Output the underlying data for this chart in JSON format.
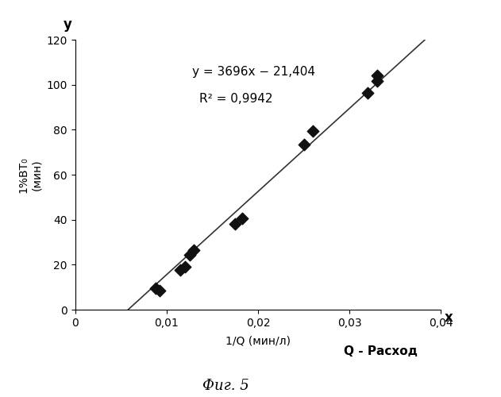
{
  "xlabel": "1/Q (мин/л)",
  "ylabel": "1%ВТ₀\n(мин)",
  "equation": "y = 3696x − 21,404",
  "r_squared": "R² = 0,9942",
  "xlim": [
    0,
    0.04
  ],
  "ylim": [
    0,
    120
  ],
  "xticks": [
    0,
    0.01,
    0.02,
    0.03,
    0.04
  ],
  "yticks": [
    0,
    20,
    40,
    60,
    80,
    100,
    120
  ],
  "slope": 3696,
  "intercept": -21.404,
  "data_x": [
    0.0088,
    0.0092,
    0.0115,
    0.012,
    0.0125,
    0.013,
    0.0175,
    0.0183,
    0.025,
    0.026,
    0.032,
    0.033,
    0.033
  ],
  "data_y": [
    9.5,
    8.5,
    17.5,
    19.0,
    24.5,
    26.5,
    38.0,
    40.5,
    73.5,
    79.5,
    96.5,
    101.5,
    104.0
  ],
  "marker_color": "#111111",
  "line_color": "#333333",
  "fig_width": 6.31,
  "fig_height": 5.0,
  "dpi": 100,
  "x_label_extra": "Q - Расход",
  "fig_title": "Фиг. 5"
}
